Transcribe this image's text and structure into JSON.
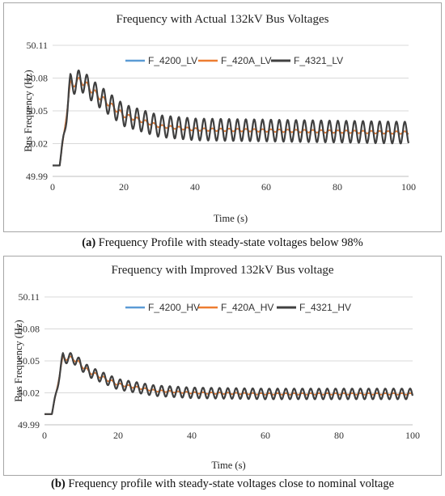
{
  "chart_data": [
    {
      "type": "line",
      "title": "Frequency with Actual 132kV Bus Voltages",
      "xlabel": "Time (s)",
      "ylabel": "Bus Frequency (Hz)",
      "xlim": [
        0,
        100
      ],
      "ylim": [
        49.99,
        50.11
      ],
      "xticks": [
        "0",
        "20",
        "40",
        "60",
        "80",
        "100"
      ],
      "yticks": [
        "49.99",
        "50.02",
        "50.05",
        "50.08",
        "50.11"
      ],
      "grid": true,
      "legend": "top-right",
      "series": [
        {
          "name": "F_4200_LV",
          "color": "#5b9bd5",
          "x": [
            0,
            2,
            5,
            8,
            12,
            20,
            30,
            40,
            60,
            80,
            100
          ],
          "values": [
            50.0,
            50.0,
            50.074,
            50.078,
            50.066,
            50.046,
            50.036,
            50.033,
            50.032,
            50.031,
            50.03
          ]
        },
        {
          "name": "F_420A_LV",
          "color": "#ed7d31",
          "x": [
            0,
            2,
            5,
            8,
            12,
            20,
            30,
            40,
            60,
            80,
            100
          ],
          "values": [
            50.0,
            50.0,
            50.074,
            50.078,
            50.066,
            50.046,
            50.036,
            50.033,
            50.032,
            50.031,
            50.03
          ]
        },
        {
          "name": "F_4321_LV",
          "color": "#404040",
          "x": [
            0,
            2,
            5,
            7,
            9,
            12,
            20,
            30,
            40,
            60,
            80,
            100
          ],
          "values": [
            50.0,
            50.0,
            50.075,
            50.092,
            50.07,
            50.08,
            50.04,
            50.045,
            50.02,
            50.04,
            50.02,
            50.04
          ]
        }
      ]
    },
    {
      "type": "line",
      "title": "Frequency with Improved 132kV Bus voltage",
      "xlabel": "Time (s)",
      "ylabel": "Bus Frequency (Hz)",
      "xlim": [
        0,
        100
      ],
      "ylim": [
        49.99,
        50.11
      ],
      "xticks": [
        "0",
        "20",
        "40",
        "60",
        "80",
        "100"
      ],
      "yticks": [
        "49.99",
        "50.02",
        "50.05",
        "50.08",
        "50.11"
      ],
      "grid": true,
      "legend": "top-right",
      "series": [
        {
          "name": "F_4200_HV",
          "color": "#5b9bd5",
          "x": [
            0,
            2,
            5,
            8,
            12,
            20,
            30,
            40,
            60,
            80,
            100
          ],
          "values": [
            50.0,
            50.0,
            50.053,
            50.052,
            50.04,
            50.028,
            50.022,
            50.02,
            50.019,
            50.019,
            50.019
          ]
        },
        {
          "name": "F_420A_HV",
          "color": "#ed7d31",
          "x": [
            0,
            2,
            5,
            8,
            12,
            20,
            30,
            40,
            60,
            80,
            100
          ],
          "values": [
            50.0,
            50.0,
            50.053,
            50.052,
            50.04,
            50.028,
            50.022,
            50.02,
            50.019,
            50.019,
            50.019
          ]
        },
        {
          "name": "F_4321_HV",
          "color": "#404040",
          "x": [
            0,
            2,
            5,
            7,
            9,
            12,
            20,
            30,
            40,
            60,
            80,
            100
          ],
          "values": [
            50.0,
            50.0,
            50.06,
            50.045,
            50.055,
            50.035,
            50.035,
            50.013,
            50.023,
            50.013,
            50.023,
            50.02
          ]
        }
      ]
    }
  ],
  "captions": [
    {
      "label": "(a)",
      "text": " Frequency Profile with steady-state voltages below 98%"
    },
    {
      "label": "(b)",
      "text": " Frequency profile with steady-state voltages close to nominal voltage"
    }
  ]
}
